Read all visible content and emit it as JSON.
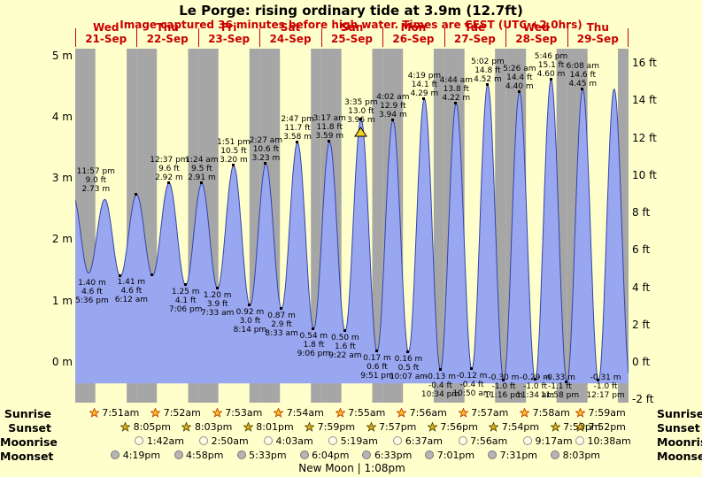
{
  "header": {
    "title": "Le Porge: rising ordinary tide at 3.9m (12.7ft)",
    "subtitle": "Image captured 36 minutes before high water. Times are CEST (UTC +2.0hrs)"
  },
  "chart_data": {
    "type": "area",
    "title": "Le Porge: rising ordinary tide at 3.9m (12.7ft)",
    "ylim_m": [
      -0.66,
      5.05
    ],
    "y_axis_m": [
      "5 m",
      "4 m",
      "3 m",
      "2 m",
      "1 m",
      "0 m"
    ],
    "y_axis_ft": [
      "16 ft",
      "14 ft",
      "12 ft",
      "10 ft",
      "8 ft",
      "6 ft",
      "4 ft",
      "2 ft",
      "0 ft",
      "-2 ft"
    ],
    "days": [
      {
        "name": "Wed",
        "date": "21-Sep"
      },
      {
        "name": "Thu",
        "date": "22-Sep"
      },
      {
        "name": "Fri",
        "date": "23-Sep"
      },
      {
        "name": "Sat",
        "date": "24-Sep"
      },
      {
        "name": "Sun",
        "date": "25-Sep"
      },
      {
        "name": "Mon",
        "date": "26-Sep"
      },
      {
        "name": "Tue",
        "date": "27-Sep"
      },
      {
        "name": "Wed",
        "date": "28-Sep"
      },
      {
        "name": "Thu",
        "date": "29-Sep"
      }
    ],
    "tides": [
      {
        "kind": "low",
        "day": 0,
        "time": "5:36 pm",
        "ft": "4.6 ft",
        "m": "1.40 m",
        "height_m": 1.4
      },
      {
        "kind": "high",
        "day": 0,
        "time": "11:57 pm",
        "ft": "9.0 ft",
        "m": "2.73 m",
        "height_m": 2.73
      },
      {
        "kind": "low",
        "day": 1,
        "time": "6:12 am",
        "ft": "4.6 ft",
        "m": "1.41 m",
        "height_m": 1.41
      },
      {
        "kind": "high",
        "day": 1,
        "time": "12:37 pm",
        "ft": "9.6 ft",
        "m": "2.92 m",
        "height_m": 2.92
      },
      {
        "kind": "low",
        "day": 1,
        "time": "7:06 pm",
        "ft": "4.1 ft",
        "m": "1.25 m",
        "height_m": 1.25
      },
      {
        "kind": "high",
        "day": 2,
        "time": "1:24 am",
        "ft": "9.5 ft",
        "m": "2.91 m",
        "height_m": 2.91
      },
      {
        "kind": "low",
        "day": 2,
        "time": "7:33 am",
        "ft": "3.9 ft",
        "m": "1.20 m",
        "height_m": 1.2
      },
      {
        "kind": "high",
        "day": 2,
        "time": "1:51 pm",
        "ft": "10.5 ft",
        "m": "3.20 m",
        "height_m": 3.2
      },
      {
        "kind": "low",
        "day": 2,
        "time": "8:14 pm",
        "ft": "3.0 ft",
        "m": "0.92 m",
        "height_m": 0.92
      },
      {
        "kind": "high",
        "day": 3,
        "time": "2:27 am",
        "ft": "10.6 ft",
        "m": "3.23 m",
        "height_m": 3.23
      },
      {
        "kind": "low",
        "day": 3,
        "time": "8:33 am",
        "ft": "2.9 ft",
        "m": "0.87 m",
        "height_m": 0.87
      },
      {
        "kind": "high",
        "day": 3,
        "time": "2:47 pm",
        "ft": "11.7 ft",
        "m": "3.58 m",
        "height_m": 3.58
      },
      {
        "kind": "low",
        "day": 3,
        "time": "9:06 pm",
        "ft": "1.8 ft",
        "m": "0.54 m",
        "height_m": 0.54
      },
      {
        "kind": "high",
        "day": 4,
        "time": "3:17 am",
        "ft": "11.8 ft",
        "m": "3.59 m",
        "height_m": 3.59
      },
      {
        "kind": "low",
        "day": 4,
        "time": "9:22 am",
        "ft": "1.6 ft",
        "m": "0.50 m",
        "height_m": 0.5
      },
      {
        "kind": "high",
        "day": 4,
        "time": "3:35 pm",
        "ft": "13.0 ft",
        "m": "3.96 m",
        "height_m": 3.96,
        "current": true
      },
      {
        "kind": "low",
        "day": 4,
        "time": "9:51 pm",
        "ft": "0.6 ft",
        "m": "0.17 m",
        "height_m": 0.17
      },
      {
        "kind": "high",
        "day": 5,
        "time": "4:02 am",
        "ft": "12.9 ft",
        "m": "3.94 m",
        "height_m": 3.94
      },
      {
        "kind": "low",
        "day": 5,
        "time": "10:07 am",
        "ft": "0.5 ft",
        "m": "0.16 m",
        "height_m": 0.16
      },
      {
        "kind": "high",
        "day": 5,
        "time": "4:19 pm",
        "ft": "14.1 ft",
        "m": "4.29 m",
        "height_m": 4.29
      },
      {
        "kind": "low",
        "day": 5,
        "time": "10:34 pm",
        "ft": "-0.4 ft",
        "m": "-0.13 m",
        "height_m": -0.13
      },
      {
        "kind": "high",
        "day": 6,
        "time": "4:44 am",
        "ft": "13.8 ft",
        "m": "4.22 m",
        "height_m": 4.22
      },
      {
        "kind": "low",
        "day": 6,
        "time": "10:50 am",
        "ft": "-0.4 ft",
        "m": "-0.12 m",
        "height_m": -0.12
      },
      {
        "kind": "high",
        "day": 6,
        "time": "5:02 pm",
        "ft": "14.8 ft",
        "m": "4.52 m",
        "height_m": 4.52
      },
      {
        "kind": "low",
        "day": 6,
        "time": "11:16 pm",
        "ft": "-1.0 ft",
        "m": "-0.30 m",
        "height_m": -0.3
      },
      {
        "kind": "high",
        "day": 7,
        "time": "5:26 am",
        "ft": "14.4 ft",
        "m": "4.40 m",
        "height_m": 4.4
      },
      {
        "kind": "low",
        "day": 7,
        "time": "11:34 am",
        "ft": "-1.0 ft",
        "m": "-0.29 m",
        "height_m": -0.29
      },
      {
        "kind": "high",
        "day": 7,
        "time": "5:46 pm",
        "ft": "15.1 ft",
        "m": "4.60 m",
        "height_m": 4.6
      },
      {
        "kind": "low",
        "day": 7,
        "time": "11:58 pm",
        "ft": "-1.1 ft",
        "m": "-0.33 m",
        "height_m": -0.33
      },
      {
        "kind": "high",
        "day": 8,
        "time": "6:08 am",
        "ft": "14.6 ft",
        "m": "4.45 m",
        "height_m": 4.45
      },
      {
        "kind": "low",
        "day": 8,
        "time": "12:17 pm",
        "ft": "-1.0 ft",
        "m": "-0.31 m",
        "height_m": -0.31
      }
    ],
    "shape_anchors": [
      {
        "t": -0.85,
        "h": 2.7
      },
      {
        "t": 5.2,
        "h": 1.45
      },
      {
        "t": 11.55,
        "h": 2.65
      },
      {
        "t": 210.4,
        "h": 4.45
      },
      {
        "t": 216.6,
        "h": -0.3
      }
    ],
    "colors": {
      "background": "#ffffcc",
      "day_band": "#ffffcc",
      "night_band": "#a6a6a6",
      "tide_fill": "#99a7f0",
      "tide_stroke": "#3344aa",
      "label_red": "#c80000",
      "marker_yellow": "#f2d41d"
    }
  },
  "astro": {
    "rows": [
      {
        "label": "Sunrise",
        "icon": "sunrise-star",
        "entries": [
          {
            "day": 0,
            "time": "7:51am"
          },
          {
            "day": 1,
            "time": "7:52am"
          },
          {
            "day": 2,
            "time": "7:53am"
          },
          {
            "day": 3,
            "time": "7:54am"
          },
          {
            "day": 4,
            "time": "7:55am"
          },
          {
            "day": 5,
            "time": "7:56am"
          },
          {
            "day": 6,
            "time": "7:57am"
          },
          {
            "day": 7,
            "time": "7:58am"
          },
          {
            "day": 8,
            "time": "7:59am"
          }
        ]
      },
      {
        "label": "Sunset",
        "icon": "sunset-star",
        "entries": [
          {
            "day": 0,
            "time": "8:05pm"
          },
          {
            "day": 1,
            "time": "8:03pm"
          },
          {
            "day": 2,
            "time": "8:01pm"
          },
          {
            "day": 3,
            "time": "7:59pm"
          },
          {
            "day": 4,
            "time": "7:57pm"
          },
          {
            "day": 5,
            "time": "7:56pm"
          },
          {
            "day": 6,
            "time": "7:54pm"
          },
          {
            "day": 7,
            "time": "7:53pm"
          },
          {
            "day": 8,
            "time": "7:52pm"
          }
        ]
      },
      {
        "label": "Moonrise",
        "icon": "moonrise-circle",
        "entries": [
          {
            "day": 1,
            "time": "1:42am"
          },
          {
            "day": 2,
            "time": "2:50am"
          },
          {
            "day": 3,
            "time": "4:03am"
          },
          {
            "day": 4,
            "time": "5:19am"
          },
          {
            "day": 5,
            "time": "6:37am"
          },
          {
            "day": 6,
            "time": "7:56am"
          },
          {
            "day": 7,
            "time": "9:17am"
          },
          {
            "day": 8,
            "time": "10:38am"
          }
        ]
      },
      {
        "label": "Moonset",
        "icon": "moonset-circle",
        "entries": [
          {
            "day": 0,
            "time": "4:19pm"
          },
          {
            "day": 1,
            "time": "4:58pm"
          },
          {
            "day": 2,
            "time": "5:33pm"
          },
          {
            "day": 3,
            "time": "6:04pm"
          },
          {
            "day": 4,
            "time": "6:33pm"
          },
          {
            "day": 5,
            "time": "7:01pm"
          },
          {
            "day": 6,
            "time": "7:31pm"
          },
          {
            "day": 7,
            "time": "8:03pm"
          }
        ]
      }
    ],
    "new_moon": "New Moon | 1:08pm"
  }
}
